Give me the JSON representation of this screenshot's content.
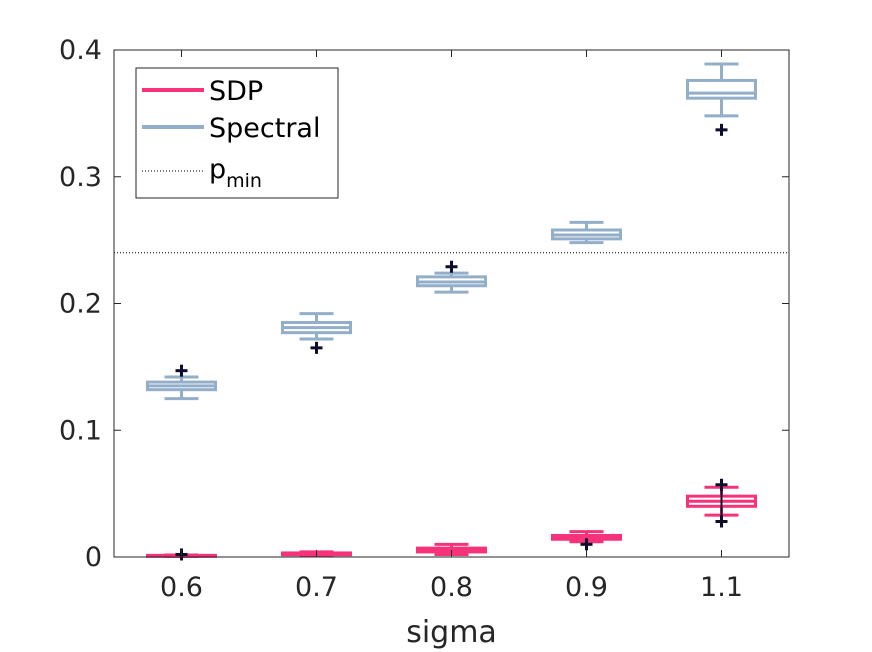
{
  "chart_data": {
    "type": "box",
    "xlabel": "sigma",
    "ylabel": "",
    "categories": [
      "0.6",
      "0.7",
      "0.8",
      "0.9",
      "1.1"
    ],
    "ylim": [
      0,
      0.4
    ],
    "yticks": [
      0,
      0.1,
      0.2,
      0.3,
      0.4
    ],
    "ytick_labels": [
      "0",
      "0.1",
      "0.2",
      "0.3",
      "0.4"
    ],
    "grid": false,
    "legend_position": "top-left",
    "reference_line": {
      "name": "p",
      "subscript": "min",
      "value": 0.24,
      "style": "dotted",
      "color": "#000000"
    },
    "outlier_color": "#0d0d2b",
    "series": [
      {
        "name": "SDP",
        "color": "#f5327a",
        "boxes": [
          {
            "category": "0.6",
            "whisker_low": 0.0005,
            "q1": 0.0008,
            "median": 0.001,
            "q3": 0.0013,
            "whisker_high": 0.0016,
            "outliers": [
              0.002
            ]
          },
          {
            "category": "0.7",
            "whisker_low": 0.001,
            "q1": 0.0018,
            "median": 0.0025,
            "q3": 0.0032,
            "whisker_high": 0.004,
            "outliers": []
          },
          {
            "category": "0.8",
            "whisker_low": 0.002,
            "q1": 0.004,
            "median": 0.0055,
            "q3": 0.007,
            "whisker_high": 0.01,
            "outliers": []
          },
          {
            "category": "0.9",
            "whisker_low": 0.012,
            "q1": 0.014,
            "median": 0.0155,
            "q3": 0.017,
            "whisker_high": 0.02,
            "outliers": [
              0.01
            ]
          },
          {
            "category": "1.1",
            "whisker_low": 0.033,
            "q1": 0.04,
            "median": 0.044,
            "q3": 0.048,
            "whisker_high": 0.055,
            "outliers": [
              0.057,
              0.028
            ]
          }
        ]
      },
      {
        "name": "Spectral",
        "color": "#92aec9",
        "boxes": [
          {
            "category": "0.6",
            "whisker_low": 0.125,
            "q1": 0.132,
            "median": 0.135,
            "q3": 0.138,
            "whisker_high": 0.142,
            "outliers": [
              0.147
            ]
          },
          {
            "category": "0.7",
            "whisker_low": 0.172,
            "q1": 0.177,
            "median": 0.181,
            "q3": 0.185,
            "whisker_high": 0.192,
            "outliers": [
              0.165
            ]
          },
          {
            "category": "0.8",
            "whisker_low": 0.209,
            "q1": 0.214,
            "median": 0.217,
            "q3": 0.221,
            "whisker_high": 0.224,
            "outliers": [
              0.229
            ]
          },
          {
            "category": "0.9",
            "whisker_low": 0.248,
            "q1": 0.251,
            "median": 0.254,
            "q3": 0.258,
            "whisker_high": 0.264,
            "outliers": []
          },
          {
            "category": "1.1",
            "whisker_low": 0.348,
            "q1": 0.362,
            "median": 0.366,
            "q3": 0.376,
            "whisker_high": 0.389,
            "outliers": [
              0.337
            ]
          }
        ]
      }
    ]
  }
}
